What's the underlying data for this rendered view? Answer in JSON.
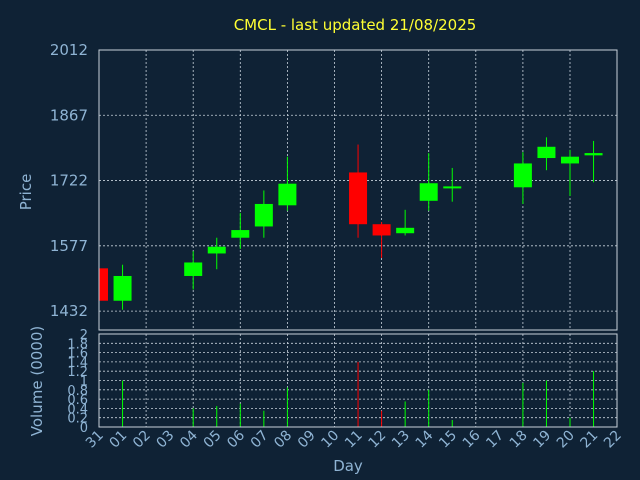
{
  "chart_data": {
    "type": "candlestick",
    "title": "CMCL - last updated 21/08/2025",
    "xlabel": "Day",
    "ylabel": "Price",
    "volume_label": "Volume (0000)",
    "price_ylim": [
      1390,
      2012
    ],
    "price_ticks": [
      "2012",
      "1867",
      "1722",
      "1577",
      "1432"
    ],
    "volume_ylim": [
      0,
      2
    ],
    "volume_ticks": [
      "2",
      "1.8",
      "1.6",
      "1.4",
      "1.2",
      "1",
      "0.8",
      "0.6",
      "0.4",
      "0.2",
      "0"
    ],
    "x_ticks": [
      "31",
      "01",
      "02",
      "03",
      "04",
      "05",
      "06",
      "07",
      "08",
      "09",
      "10",
      "11",
      "12",
      "13",
      "14",
      "15",
      "16",
      "17",
      "18",
      "19",
      "20",
      "21",
      "22"
    ],
    "grid": true,
    "colors": {
      "up": "#00ff00",
      "down": "#ff0000",
      "background": "#0f2235",
      "title": "#ffff33",
      "axis_text": "#8fb4d4"
    },
    "candles": [
      {
        "day": "31",
        "open": 1527,
        "high": 1527,
        "low": 1455,
        "close": 1455,
        "volume": 0
      },
      {
        "day": "01",
        "open": 1455,
        "high": 1535,
        "low": 1435,
        "close": 1510,
        "volume": 1.0
      },
      {
        "day": "04",
        "open": 1510,
        "high": 1565,
        "low": 1480,
        "close": 1540,
        "volume": 0.4
      },
      {
        "day": "05",
        "open": 1560,
        "high": 1595,
        "low": 1525,
        "close": 1575,
        "volume": 0.45
      },
      {
        "day": "06",
        "open": 1595,
        "high": 1650,
        "low": 1570,
        "close": 1612,
        "volume": 0.5
      },
      {
        "day": "07",
        "open": 1620,
        "high": 1700,
        "low": 1595,
        "close": 1670,
        "volume": 0.35
      },
      {
        "day": "08",
        "open": 1667,
        "high": 1775,
        "low": 1655,
        "close": 1715,
        "volume": 0.85
      },
      {
        "day": "11",
        "open": 1740,
        "high": 1802,
        "low": 1595,
        "close": 1625,
        "volume": 1.4
      },
      {
        "day": "12",
        "open": 1625,
        "high": 1630,
        "low": 1550,
        "close": 1600,
        "volume": 0.35
      },
      {
        "day": "13",
        "open": 1605,
        "high": 1657,
        "low": 1600,
        "close": 1617,
        "volume": 0.55
      },
      {
        "day": "14",
        "open": 1677,
        "high": 1783,
        "low": 1655,
        "close": 1716,
        "volume": 0.8
      },
      {
        "day": "15",
        "open": 1705,
        "high": 1750,
        "low": 1675,
        "close": 1709,
        "volume": 0.15
      },
      {
        "day": "18",
        "open": 1707,
        "high": 1785,
        "low": 1670,
        "close": 1760,
        "volume": 0.95
      },
      {
        "day": "19",
        "open": 1772,
        "high": 1818,
        "low": 1745,
        "close": 1797,
        "volume": 1.0
      },
      {
        "day": "20",
        "open": 1760,
        "high": 1790,
        "low": 1688,
        "close": 1775,
        "volume": 0.2
      },
      {
        "day": "21",
        "open": 1778,
        "high": 1810,
        "low": 1718,
        "close": 1783,
        "volume": 1.2
      }
    ]
  }
}
